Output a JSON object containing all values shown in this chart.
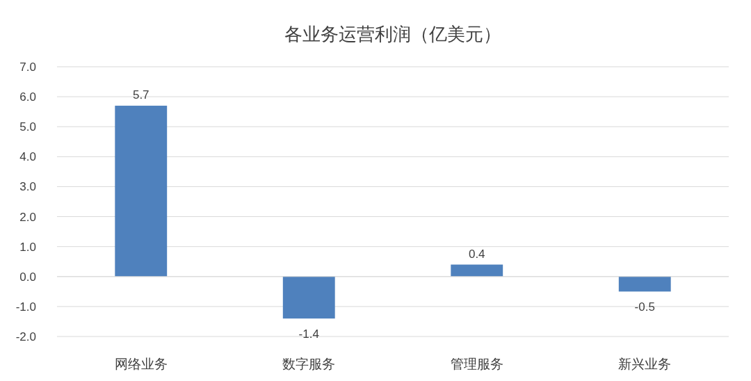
{
  "chart_data": {
    "type": "bar",
    "title": "各业务运营利润（亿美元）",
    "categories": [
      "网络业务",
      "数字服务",
      "管理服务",
      "新兴业务"
    ],
    "values": [
      5.7,
      -1.4,
      0.4,
      -0.5
    ],
    "color": "#4f81bd",
    "ylim": [
      -2,
      7
    ],
    "yticks": [
      {
        "value": -2,
        "label": "-2.0"
      },
      {
        "value": -1,
        "label": "-1.0"
      },
      {
        "value": 0,
        "label": "0.0"
      },
      {
        "value": 1,
        "label": "1.0"
      },
      {
        "value": 2,
        "label": "2.0"
      },
      {
        "value": 3,
        "label": "3.0"
      },
      {
        "value": 4,
        "label": "4.0"
      },
      {
        "value": 5,
        "label": "5.0"
      },
      {
        "value": 6,
        "label": "6.0"
      },
      {
        "value": 7,
        "label": "7.0"
      }
    ],
    "grid": "y",
    "data_labels": true
  }
}
